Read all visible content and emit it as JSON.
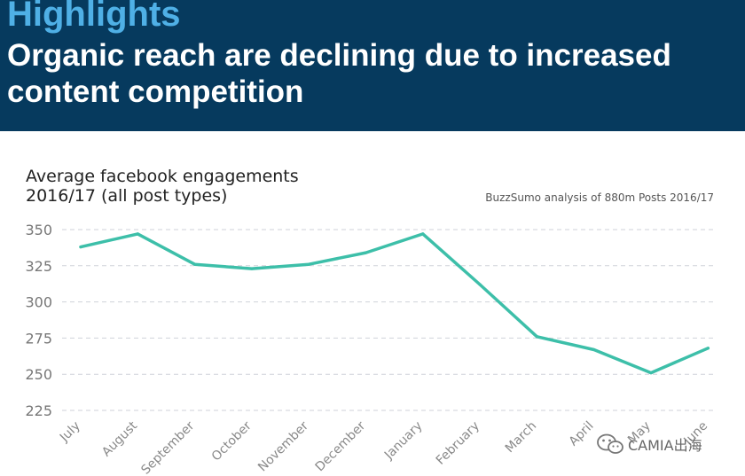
{
  "header": {
    "label": "Highlights",
    "title": "Organic reach are declining due to increased content competition"
  },
  "chart_data": {
    "type": "line",
    "title_lines": [
      "Average facebook engagements",
      "2016/17 (all post types)"
    ],
    "source": "BuzzSumo analysis of 880m Posts 2016/17",
    "categories": [
      "July",
      "August",
      "September",
      "October",
      "November",
      "December",
      "January",
      "February",
      "March",
      "April",
      "May",
      "June"
    ],
    "series": [
      {
        "name": "Average facebook engagements",
        "values": [
          338,
          347,
          326,
          323,
          326,
          334,
          347,
          312,
          276,
          267,
          251,
          268
        ]
      }
    ],
    "yticks": [
      225,
      250,
      275,
      300,
      325,
      350
    ],
    "ylim": [
      218,
      356
    ],
    "grid": true,
    "line_color": "#3dbfa9",
    "grid_color": "#cfd2da",
    "xlabel": "",
    "ylabel": ""
  },
  "watermark": {
    "text": "CAMIA出海",
    "icon": "wechat-icon"
  }
}
